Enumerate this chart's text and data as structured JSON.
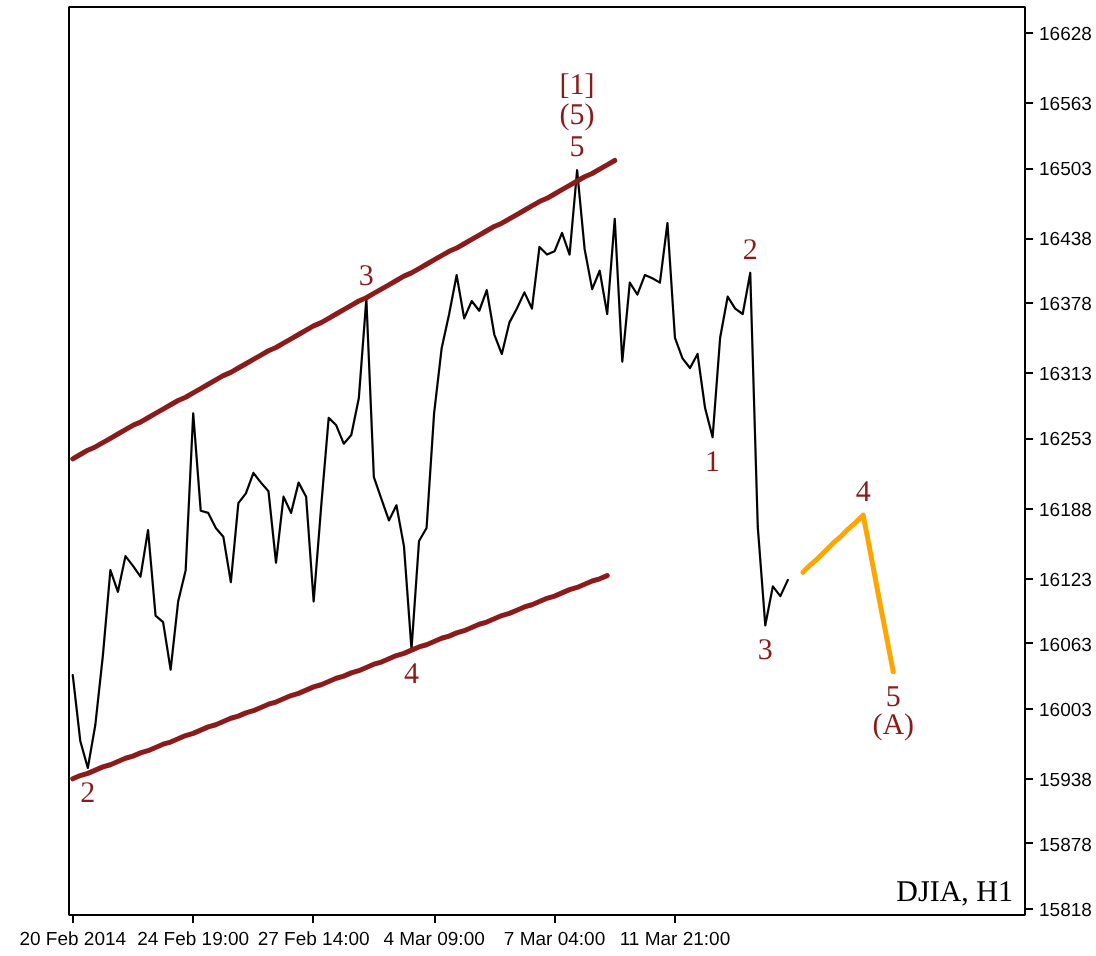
{
  "chart_data": {
    "type": "line",
    "categories": [
      "20 Feb 2014",
      null,
      null,
      null,
      null,
      null,
      null,
      null,
      null,
      null,
      null,
      null,
      null,
      null,
      null,
      null,
      "24 Feb 19:00",
      null,
      null,
      null,
      null,
      null,
      null,
      null,
      null,
      null,
      null,
      null,
      null,
      null,
      null,
      null,
      "27 Feb 14:00",
      null,
      null,
      null,
      null,
      null,
      null,
      null,
      null,
      null,
      null,
      null,
      null,
      null,
      null,
      null,
      "4 Mar 09:00",
      null,
      null,
      null,
      null,
      null,
      null,
      null,
      null,
      null,
      null,
      null,
      null,
      null,
      null,
      null,
      "7 Mar 04:00",
      null,
      null,
      null,
      null,
      null,
      null,
      null,
      null,
      null,
      null,
      null,
      null,
      null,
      null,
      null,
      "11 Mar 21:00",
      null,
      null,
      null,
      null,
      null,
      null,
      null,
      null,
      null,
      null,
      null,
      null,
      null,
      null,
      null,
      null,
      null,
      null,
      null,
      null,
      null,
      null,
      null,
      null,
      null,
      null,
      null,
      null,
      null,
      null,
      null,
      null,
      null,
      null,
      null,
      null,
      null,
      null,
      null,
      null,
      null,
      null,
      null,
      null,
      null,
      null
    ],
    "ylim": [
      15812,
      16652
    ],
    "yticks": [
      15818,
      15878,
      15938,
      16003,
      16063,
      16123,
      16188,
      16253,
      16313,
      16378,
      16438,
      16503,
      16563,
      16628
    ],
    "series": [
      {
        "color": "#000000",
        "values": [
          16034,
          15973,
          15948,
          15988,
          16052,
          16131,
          16111,
          16144,
          16135,
          16125,
          16168,
          16089,
          16083,
          16039,
          16102,
          16131,
          16276,
          16186,
          16184,
          16170,
          16162,
          16120,
          16193,
          16202,
          16221,
          16212,
          16204,
          16138,
          16199,
          16184,
          16212,
          16199,
          16102,
          16190,
          16272,
          16265,
          16248,
          16256,
          16290,
          16382,
          16217,
          16197,
          16177,
          16191,
          16153,
          16058,
          16158,
          16170,
          16276,
          16336,
          16368,
          16404,
          16364,
          16380,
          16371,
          16390,
          16349,
          16331,
          16360,
          16373,
          16388,
          16373,
          16430,
          16423,
          16426,
          16443,
          16423,
          16501,
          16428,
          16391,
          16408,
          16368,
          16456,
          16324,
          16397,
          16386,
          16404,
          16401,
          16397,
          16452,
          16346,
          16327,
          16318,
          16331,
          16281,
          16254,
          16346,
          16384,
          16373,
          16368,
          16406,
          16171,
          16080,
          16116,
          16107,
          16122,
          null,
          null,
          null,
          null,
          null,
          null,
          null,
          null,
          null,
          null,
          null,
          null,
          null,
          null,
          null,
          null,
          null,
          null,
          null,
          null,
          null,
          null,
          null,
          null,
          null,
          null,
          null,
          null,
          null,
          null,
          null
        ]
      },
      {
        "color": "#8b1a1a",
        "values": [
          16234,
          16238,
          16242,
          16245,
          16249,
          16253,
          16257,
          16261,
          16265,
          16268,
          16272,
          16276,
          16280,
          16284,
          16288,
          16291,
          16295,
          16299,
          16303,
          16307,
          16311,
          16314,
          16318,
          16322,
          16326,
          16330,
          16334,
          16337,
          16341,
          16345,
          16349,
          16353,
          16357,
          16360,
          16364,
          16368,
          16372,
          16376,
          16380,
          16383,
          16387,
          16391,
          16395,
          16399,
          16403,
          16406,
          16410,
          16414,
          16418,
          16422,
          16426,
          16429,
          16433,
          16437,
          16441,
          16445,
          16449,
          16452,
          16456,
          16460,
          16464,
          16468,
          16472,
          16475,
          16479,
          16483,
          16487,
          16491,
          16495,
          16498,
          16502,
          16506,
          16510,
          null,
          null,
          null,
          null,
          null,
          null,
          null,
          null,
          null,
          null,
          null,
          null,
          null,
          null,
          null,
          null,
          null,
          null,
          null,
          null,
          null,
          null,
          null,
          null,
          null,
          null,
          null,
          null,
          null,
          null,
          null,
          null,
          null,
          null,
          null,
          null,
          null,
          null,
          null,
          null,
          null,
          null,
          null,
          null,
          null,
          null,
          null,
          null,
          null,
          null,
          null,
          null,
          null,
          null
        ]
      },
      {
        "color": "#8b1a1a",
        "values": [
          15938,
          15941,
          15943,
          15946,
          15949,
          15951,
          15954,
          15957,
          15959,
          15962,
          15964,
          15967,
          15970,
          15972,
          15975,
          15978,
          15980,
          15983,
          15986,
          15988,
          15991,
          15994,
          15996,
          15999,
          16001,
          16004,
          16007,
          16009,
          16012,
          16015,
          16017,
          16020,
          16023,
          16025,
          16028,
          16031,
          16033,
          16036,
          16038,
          16041,
          16044,
          16046,
          16049,
          16052,
          16054,
          16057,
          16060,
          16062,
          16065,
          16068,
          16070,
          16073,
          16075,
          16078,
          16081,
          16083,
          16086,
          16089,
          16091,
          16094,
          16097,
          16099,
          16102,
          16105,
          16107,
          16110,
          16113,
          16115,
          16118,
          16121,
          16123,
          16126,
          null,
          null,
          null,
          null,
          null,
          null,
          null,
          null,
          null,
          null,
          null,
          null,
          null,
          null,
          null,
          null,
          null,
          null,
          null,
          null,
          null,
          null,
          null,
          null,
          null,
          null,
          null,
          null,
          null,
          null,
          null,
          null,
          null,
          null,
          null,
          null,
          null,
          null,
          null,
          null,
          null,
          null,
          null,
          null,
          null,
          null,
          null,
          null,
          null,
          null,
          null,
          null,
          null,
          null,
          null
        ]
      },
      {
        "color": "#ffa500",
        "values": [
          null,
          null,
          null,
          null,
          null,
          null,
          null,
          null,
          null,
          null,
          null,
          null,
          null,
          null,
          null,
          null,
          null,
          null,
          null,
          null,
          null,
          null,
          null,
          null,
          null,
          null,
          null,
          null,
          null,
          null,
          null,
          null,
          null,
          null,
          null,
          null,
          null,
          null,
          null,
          null,
          null,
          null,
          null,
          null,
          null,
          null,
          null,
          null,
          null,
          null,
          null,
          null,
          null,
          null,
          null,
          null,
          null,
          null,
          null,
          null,
          null,
          null,
          null,
          null,
          null,
          null,
          null,
          null,
          null,
          null,
          null,
          null,
          null,
          null,
          null,
          null,
          null,
          null,
          null,
          null,
          null,
          null,
          null,
          null,
          null,
          null,
          null,
          null,
          null,
          null,
          null,
          null,
          null,
          null,
          null,
          null,
          null,
          16129,
          16136,
          16142,
          16149,
          16156,
          16162,
          16169,
          16175,
          16182,
          16146,
          16109,
          16073,
          16037,
          null,
          null,
          null,
          null,
          null,
          null,
          null,
          null,
          null,
          null,
          null,
          null,
          null,
          null,
          null,
          null,
          null
        ]
      }
    ],
    "annotations": [
      {
        "text": "5",
        "y": 16501
      },
      {
        "text": "(5)",
        "y": 16501
      },
      {
        "text": "[1]",
        "y": 16501
      },
      {
        "text": "3",
        "y": 16382
      },
      {
        "text": "4",
        "y": 16058
      },
      {
        "text": "2",
        "y": 15948
      },
      {
        "text": "1",
        "y": 16254
      },
      {
        "text": "2",
        "y": 16406
      },
      {
        "text": "3",
        "y": 16080
      },
      {
        "text": "4",
        "y": 16182
      },
      {
        "text": "5",
        "y": 16037
      },
      {
        "text": "(A)",
        "y": 16037
      },
      "DJIA, H1"
    ]
  }
}
